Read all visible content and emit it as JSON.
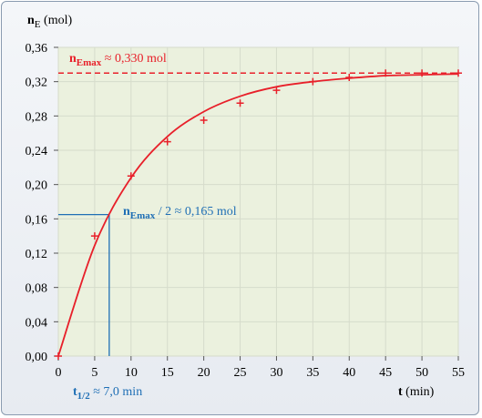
{
  "chart_data": {
    "type": "scatter",
    "y_label": [
      "n",
      "E",
      " (mol)"
    ],
    "x_label": [
      "t",
      " (min)"
    ],
    "x": [
      0,
      5,
      10,
      15,
      20,
      25,
      30,
      35,
      40,
      45,
      50,
      55
    ],
    "series": [
      {
        "style": "cross",
        "color": "#e8202a",
        "values": [
          0,
          0.14,
          0.21,
          0.25,
          0.275,
          0.295,
          0.31,
          0.32,
          0.325,
          0.33,
          0.33,
          0.33
        ]
      },
      {
        "style": "curve",
        "color": "#e8202a",
        "values": [
          0,
          0.129,
          0.208,
          0.256,
          0.285,
          0.303,
          0.314,
          0.32,
          0.324,
          0.327,
          0.328,
          0.329
        ]
      }
    ],
    "xlim": [
      0,
      55
    ],
    "ylim": [
      0,
      0.36
    ],
    "xticks": [
      0,
      5,
      10,
      15,
      20,
      25,
      30,
      35,
      40,
      45,
      50,
      55
    ],
    "yticks": [
      {
        "value": 0,
        "label": "0,00"
      },
      {
        "value": 0.04,
        "label": "0,04"
      },
      {
        "value": 0.08,
        "label": "0,08"
      },
      {
        "value": 0.12,
        "label": "0,12"
      },
      {
        "value": 0.16,
        "label": "0,16"
      },
      {
        "value": 0.2,
        "label": "0,20"
      },
      {
        "value": 0.24,
        "label": "0,24"
      },
      {
        "value": 0.28,
        "label": "0,28"
      },
      {
        "value": 0.32,
        "label": "0,32"
      },
      {
        "value": 0.36,
        "label": "0,36"
      }
    ],
    "grid": true,
    "reference_lines": {
      "y_max": 0.33,
      "y_max_color": "#e8202a",
      "half_y": 0.165,
      "t_half": 7,
      "half_color": "#1f6fb5"
    },
    "annotations": {
      "max": [
        "n",
        "Emax",
        " ≈ 0,330 mol"
      ],
      "half": [
        "n",
        "Emax",
        "  / 2 ≈ 0,165 mol"
      ],
      "t_half": [
        "t",
        "1/2",
        " ≈ 7,0 min"
      ]
    }
  }
}
